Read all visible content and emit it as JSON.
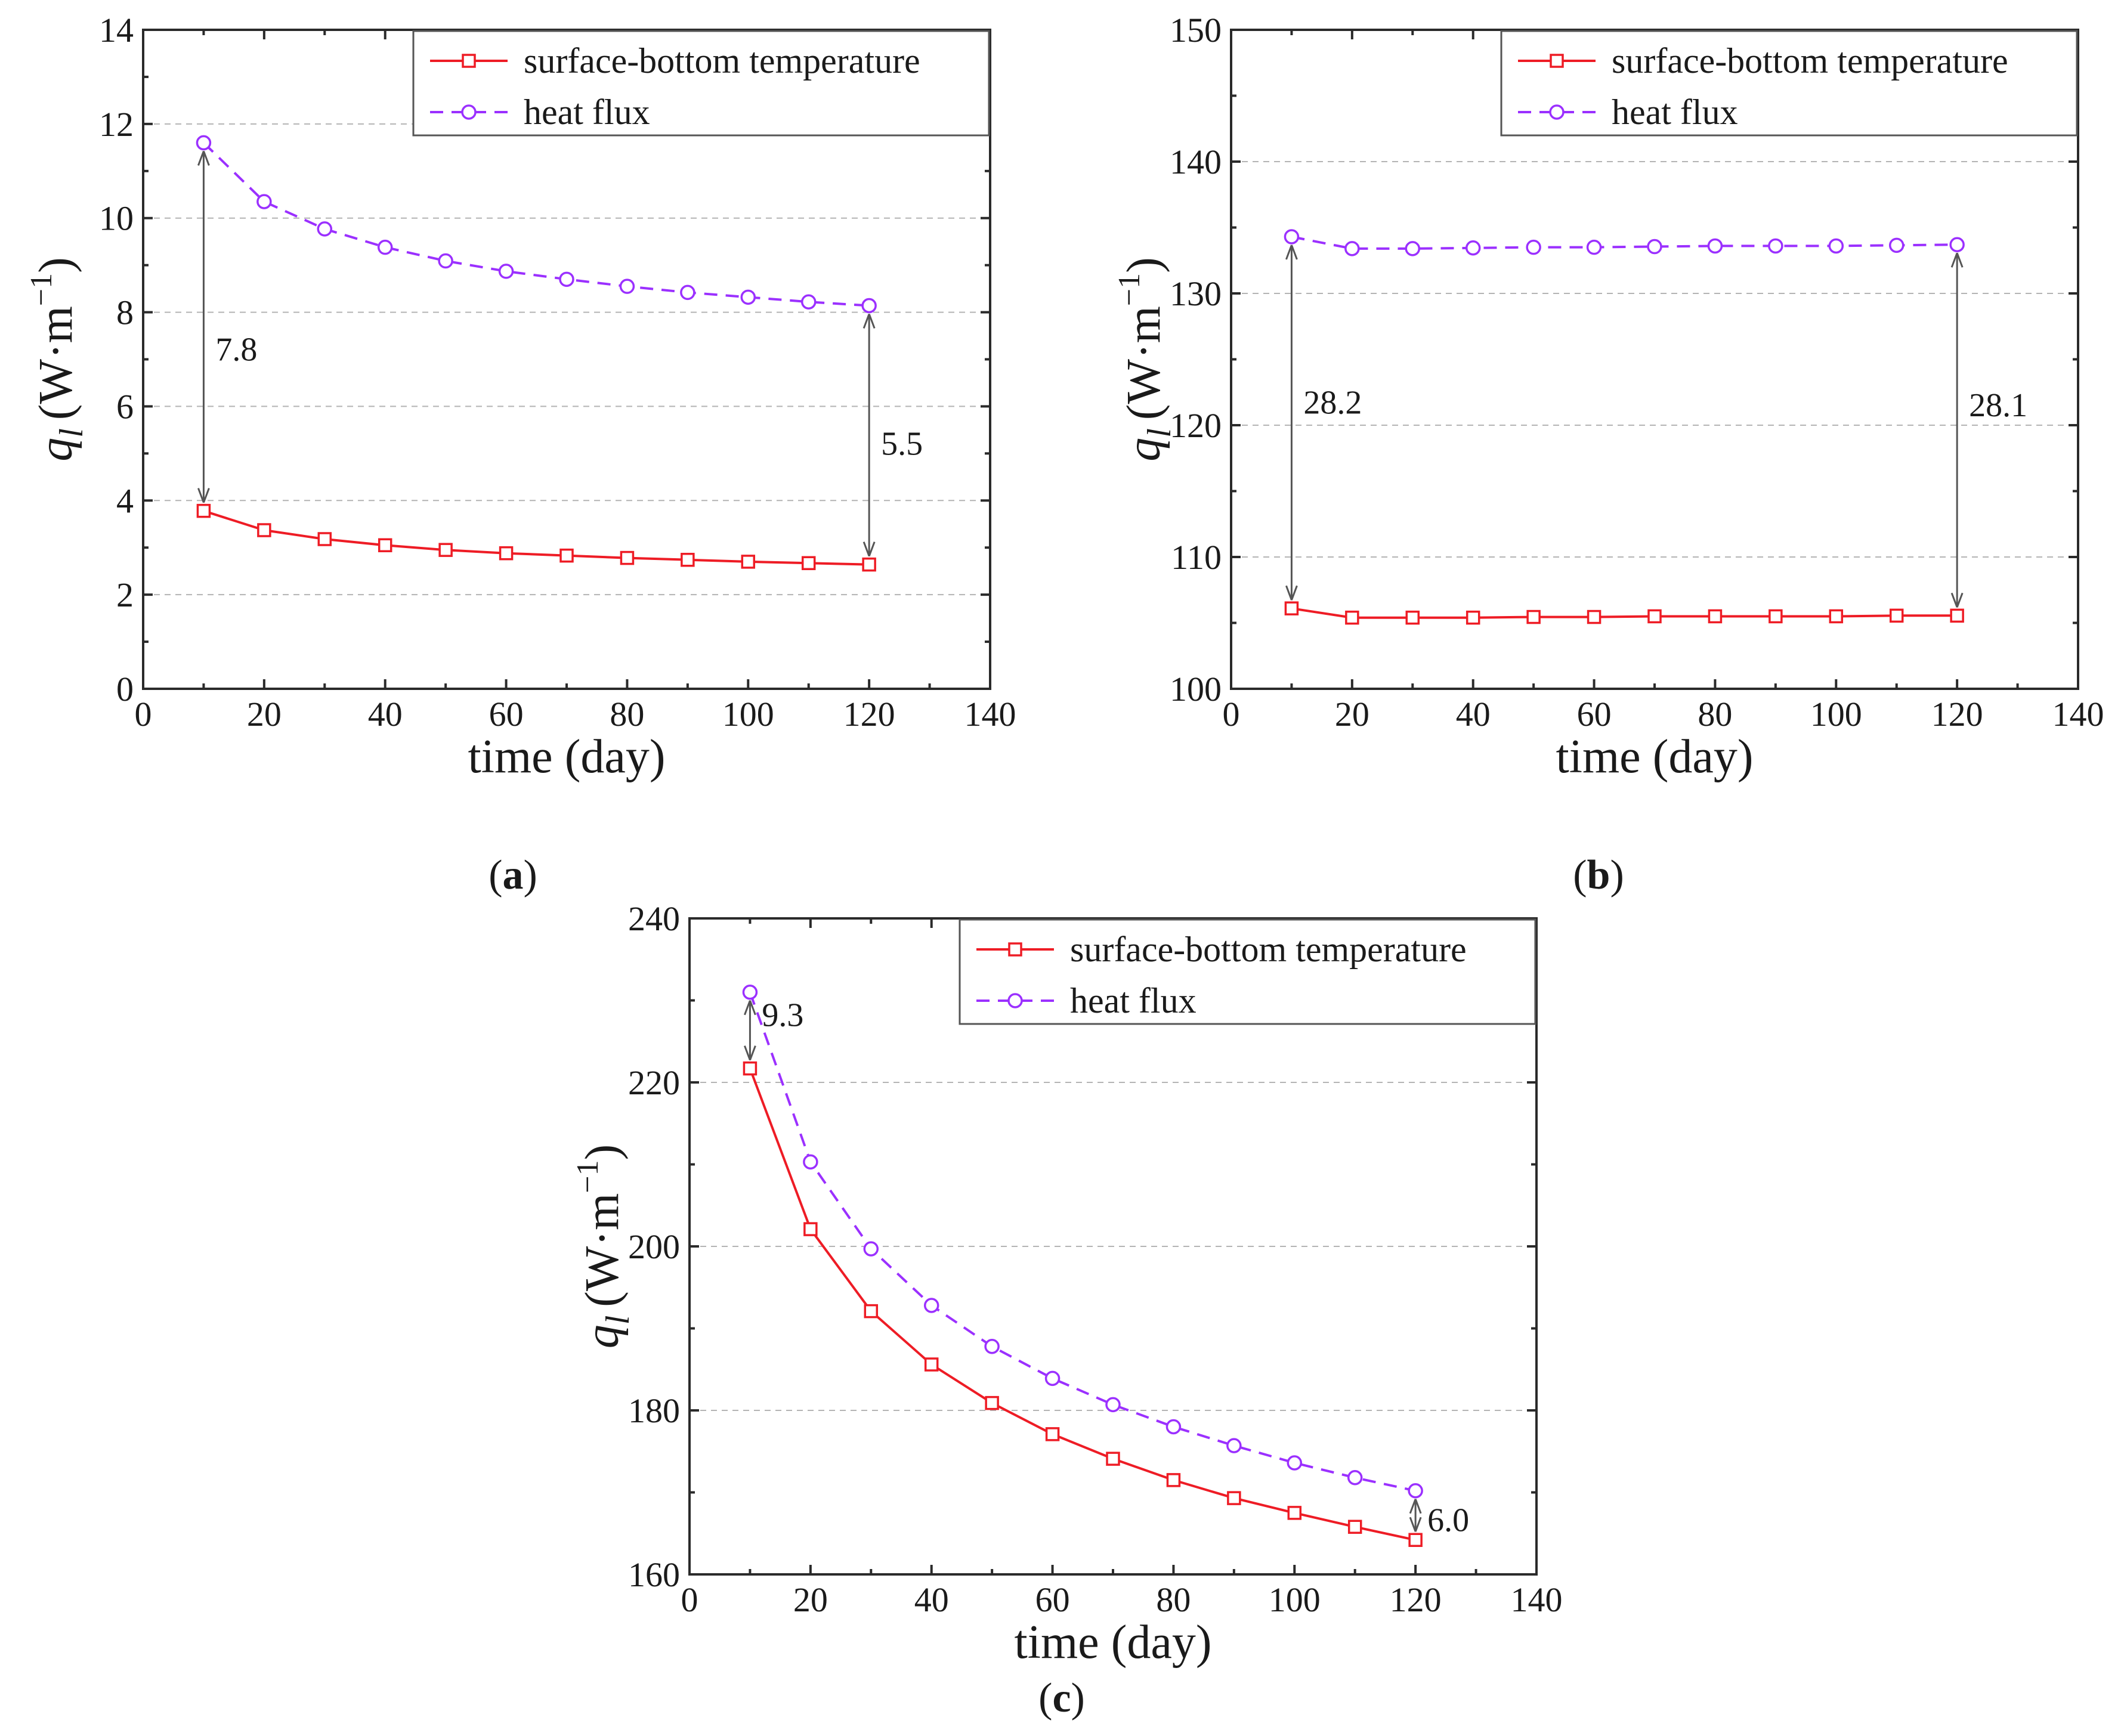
{
  "chart_data": [
    {
      "type": "line",
      "panel_label": "a",
      "xlabel": "time (day)",
      "ylabel_symbol": "q",
      "ylabel_subscript": "l",
      "ylabel_units_prefix": "(W·m",
      "ylabel_units_exponent": "−1",
      "ylabel_units_suffix": ")",
      "xlim": [
        0,
        140
      ],
      "ylim": [
        0,
        14
      ],
      "xticks": [
        0,
        20,
        40,
        60,
        80,
        100,
        120,
        140
      ],
      "yticks": [
        0,
        2,
        4,
        6,
        8,
        10,
        12,
        14
      ],
      "grid": "horizontal-dashed",
      "legend_position": "top-right",
      "x": [
        10,
        20,
        30,
        40,
        50,
        60,
        70,
        80,
        90,
        100,
        110,
        120
      ],
      "series": [
        {
          "name": "surface-bottom temperature",
          "style": "solid",
          "marker": "square",
          "color": "#ee1c25",
          "values": [
            3.78,
            3.37,
            3.18,
            3.05,
            2.95,
            2.88,
            2.83,
            2.78,
            2.74,
            2.7,
            2.67,
            2.64
          ]
        },
        {
          "name": "heat flux",
          "style": "dashed",
          "marker": "circle",
          "color": "#9b30ff",
          "values": [
            11.6,
            10.35,
            9.77,
            9.38,
            9.09,
            8.87,
            8.7,
            8.55,
            8.42,
            8.32,
            8.22,
            8.14
          ]
        }
      ],
      "annotations": [
        {
          "x": 10,
          "from": 3.78,
          "to": 11.6,
          "label": "7.8",
          "label_side": "right",
          "label_y": 7.2
        },
        {
          "x": 120,
          "from": 2.64,
          "to": 8.14,
          "label": "5.5",
          "label_side": "right",
          "label_y": 5.2
        }
      ]
    },
    {
      "type": "line",
      "panel_label": "b",
      "xlabel": "time (day)",
      "ylabel_symbol": "q",
      "ylabel_subscript": "l",
      "ylabel_units_prefix": "(W·m",
      "ylabel_units_exponent": "−1",
      "ylabel_units_suffix": ")",
      "xlim": [
        0,
        140
      ],
      "ylim": [
        100,
        150
      ],
      "xticks": [
        0,
        20,
        40,
        60,
        80,
        100,
        120,
        140
      ],
      "yticks": [
        100,
        110,
        120,
        130,
        140,
        150
      ],
      "grid": "horizontal-dashed",
      "legend_position": "top-right",
      "x": [
        10,
        20,
        30,
        40,
        50,
        60,
        70,
        80,
        90,
        100,
        110,
        120
      ],
      "series": [
        {
          "name": "surface-bottom temperature",
          "style": "solid",
          "marker": "square",
          "color": "#ee1c25",
          "values": [
            106.1,
            105.4,
            105.4,
            105.4,
            105.45,
            105.45,
            105.5,
            105.5,
            105.5,
            105.5,
            105.55,
            105.55
          ]
        },
        {
          "name": "heat flux",
          "style": "dashed",
          "marker": "circle",
          "color": "#9b30ff",
          "values": [
            134.3,
            133.4,
            133.4,
            133.45,
            133.5,
            133.5,
            133.55,
            133.6,
            133.6,
            133.6,
            133.65,
            133.7
          ]
        }
      ],
      "annotations": [
        {
          "x": 10,
          "from": 106.1,
          "to": 134.3,
          "label": "28.2",
          "label_side": "right",
          "label_y": 121.7
        },
        {
          "x": 120,
          "from": 105.55,
          "to": 133.7,
          "label": "28.1",
          "label_side": "right",
          "label_y": 121.5
        }
      ]
    },
    {
      "type": "line",
      "panel_label": "c",
      "xlabel": "time (day)",
      "ylabel_symbol": "q",
      "ylabel_subscript": "l",
      "ylabel_units_prefix": "(W·m",
      "ylabel_units_exponent": "−1",
      "ylabel_units_suffix": ")",
      "xlim": [
        0,
        140
      ],
      "ylim": [
        160,
        240
      ],
      "xticks": [
        0,
        20,
        40,
        60,
        80,
        100,
        120,
        140
      ],
      "yticks": [
        160,
        180,
        200,
        220,
        240
      ],
      "grid": "horizontal-dashed",
      "legend_position": "top-right",
      "x": [
        10,
        20,
        30,
        40,
        50,
        60,
        70,
        80,
        90,
        100,
        110,
        120
      ],
      "series": [
        {
          "name": "surface-bottom temperature",
          "style": "solid",
          "marker": "square",
          "color": "#ee1c25",
          "values": [
            221.7,
            202.1,
            192.1,
            185.6,
            180.9,
            177.1,
            174.1,
            171.5,
            169.3,
            167.5,
            165.8,
            164.2
          ]
        },
        {
          "name": "heat flux",
          "style": "dashed",
          "marker": "circle",
          "color": "#9b30ff",
          "values": [
            231.0,
            210.3,
            199.7,
            192.8,
            187.8,
            183.9,
            180.7,
            178.0,
            175.7,
            173.6,
            171.8,
            170.2
          ]
        }
      ],
      "annotations": [
        {
          "x": 10,
          "from": 221.7,
          "to": 231.0,
          "label": "9.3",
          "label_side": "right",
          "label_y": 228.2
        },
        {
          "x": 120,
          "from": 164.2,
          "to": 170.2,
          "label": "6.0",
          "label_side": "right",
          "label_y": 166.6
        }
      ]
    }
  ]
}
